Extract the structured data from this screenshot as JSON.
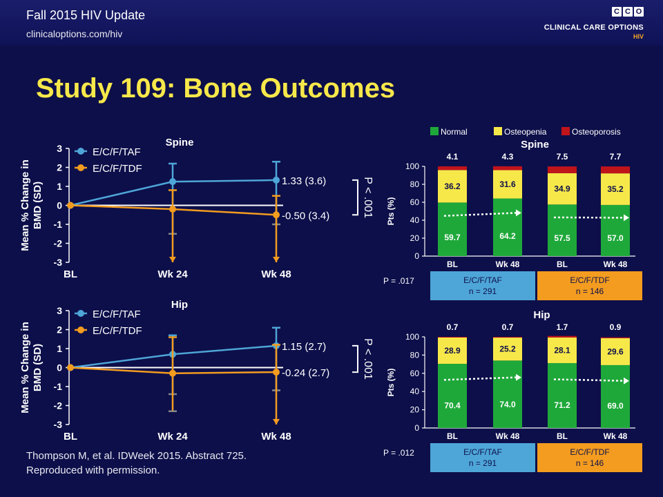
{
  "header": {
    "title": "Fall 2015 HIV Update",
    "url": "clinicaloptions.com/hiv"
  },
  "logo": {
    "boxes": [
      "C",
      "C",
      "O"
    ],
    "brand": "CLINICAL CARE OPTIONS",
    "sub": "HIV"
  },
  "slide_title": "Study 109: Bone Outcomes",
  "citation": [
    "Thompson M, et al. IDWeek 2015. Abstract 725.",
    "Reproduced with permission."
  ],
  "colors": {
    "taf": "#4ea6d8",
    "tdf": "#f39c1f",
    "normal": "#1fa83a",
    "osteopenia": "#f7e84a",
    "osteoporosis": "#c0141b",
    "box_taf": "#4ea6d8",
    "box_tdf": "#f39c1f"
  },
  "chart_data": [
    {
      "type": "line",
      "title": "Spine",
      "ylabel": "Mean % Change in BMD (SD)",
      "categories": [
        "BL",
        "Wk 24",
        "Wk 48"
      ],
      "yticks": [
        "3",
        "2",
        "1",
        "0",
        "-1",
        "-2",
        "-3"
      ],
      "ylim": [
        -3,
        3
      ],
      "series": [
        {
          "name": "E/C/F/TAF",
          "values": [
            0,
            1.25,
            1.33
          ],
          "err_low": [
            0,
            -1.5,
            -1.0
          ],
          "err_high": [
            0,
            2.2,
            2.3
          ],
          "end_label": "1.33 (3.6)"
        },
        {
          "name": "E/C/F/TDF",
          "values": [
            0,
            -0.2,
            -0.5
          ],
          "err_low": [
            0,
            -3,
            -3
          ],
          "err_high": [
            0,
            0.8,
            0.5
          ],
          "end_label": "-0.50 (3.4)"
        }
      ],
      "pvalue": "P < .001"
    },
    {
      "type": "line",
      "title": "Hip",
      "ylabel": "Mean % Change in BMD (SD)",
      "categories": [
        "BL",
        "Wk 24",
        "Wk 48"
      ],
      "yticks": [
        "3",
        "2",
        "1",
        "0",
        "-1",
        "-2",
        "-3"
      ],
      "ylim": [
        -3,
        3
      ],
      "series": [
        {
          "name": "E/C/F/TAF",
          "values": [
            0,
            0.7,
            1.15
          ],
          "err_low": [
            0,
            -1.4,
            -1.2
          ],
          "err_high": [
            0,
            1.7,
            2.1
          ],
          "end_label": "1.15 (2.7)"
        },
        {
          "name": "E/C/F/TDF",
          "values": [
            0,
            -0.3,
            -0.24
          ],
          "err_low": [
            0,
            -2.3,
            -3
          ],
          "err_high": [
            0,
            1.6,
            1.2
          ],
          "end_label": "-0.24 (2.7)"
        }
      ],
      "pvalue": "P < .001"
    },
    {
      "type": "bar",
      "title": "Spine",
      "ylabel": "Pts (%)",
      "categories": [
        "BL",
        "Wk 48",
        "BL",
        "Wk 48"
      ],
      "yticks": [
        "100",
        "80",
        "60",
        "40",
        "20",
        "0"
      ],
      "ylim": [
        0,
        100
      ],
      "series": [
        {
          "name": "Normal",
          "values": [
            59.7,
            64.2,
            57.5,
            57.0
          ],
          "labels": [
            "59.7",
            "64.2",
            "57.5",
            "57.0"
          ]
        },
        {
          "name": "Osteopenia",
          "values": [
            36.2,
            31.6,
            34.9,
            35.2
          ],
          "labels": [
            "36.2",
            "31.6",
            "34.9",
            "35.2"
          ]
        },
        {
          "name": "Osteoporosis",
          "values": [
            4.1,
            4.3,
            7.5,
            7.7
          ],
          "labels": [
            "4.1",
            "4.3",
            "7.5",
            "7.7"
          ]
        }
      ],
      "groups": [
        {
          "label": "E/C/F/TAF",
          "n": "n = 291"
        },
        {
          "label": "E/C/F/TDF",
          "n": "n = 146"
        }
      ],
      "pvalue": "P = .017",
      "legend": [
        "Normal",
        "Osteopenia",
        "Osteoporosis"
      ]
    },
    {
      "type": "bar",
      "title": "Hip",
      "ylabel": "Pts (%)",
      "categories": [
        "BL",
        "Wk 48",
        "BL",
        "Wk 48"
      ],
      "yticks": [
        "100",
        "80",
        "60",
        "40",
        "20",
        "0"
      ],
      "ylim": [
        0,
        100
      ],
      "series": [
        {
          "name": "Normal",
          "values": [
            70.4,
            74.0,
            71.2,
            69.0
          ],
          "labels": [
            "70.4",
            "74.0",
            "71.2",
            "69.0"
          ]
        },
        {
          "name": "Osteopenia",
          "values": [
            28.9,
            25.2,
            28.1,
            29.6
          ],
          "labels": [
            "28.9",
            "25.2",
            "28.1",
            "29.6"
          ]
        },
        {
          "name": "Osteoporosis",
          "values": [
            0.7,
            0.7,
            1.7,
            0.9
          ],
          "labels": [
            "0.7",
            "0.7",
            "1.7",
            "0.9"
          ]
        }
      ],
      "groups": [
        {
          "label": "E/C/F/TAF",
          "n": "n = 291"
        },
        {
          "label": "E/C/F/TDF",
          "n": "n = 146"
        }
      ],
      "pvalue": "P = .012"
    }
  ]
}
